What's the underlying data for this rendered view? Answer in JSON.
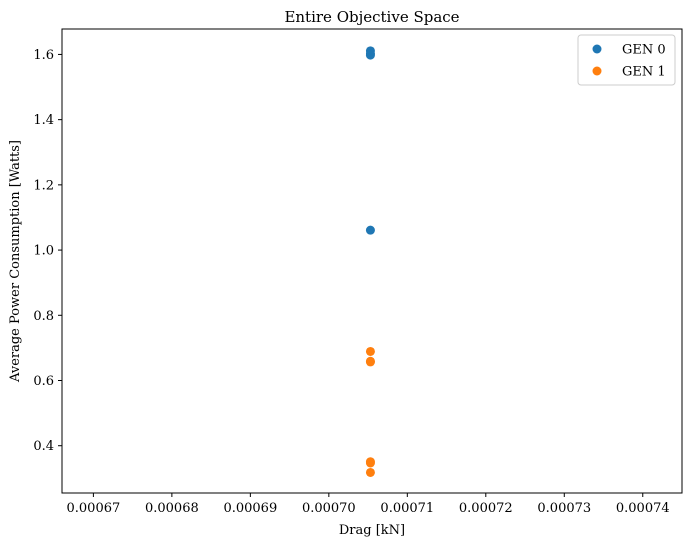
{
  "chart_data": {
    "type": "scatter",
    "title": "Entire Objective Space",
    "xlabel": "Drag [kN]",
    "ylabel": "Average Power Consumption [Watts]",
    "xlim": [
      0.000666,
      0.000745
    ],
    "ylim": [
      0.255,
      1.678
    ],
    "xticks": [
      0.00067,
      0.00068,
      0.00069,
      0.0007,
      0.00071,
      0.00072,
      0.00073,
      0.00074
    ],
    "xtick_labels": [
      "0.00067",
      "0.00068",
      "0.00069",
      "0.00070",
      "0.00071",
      "0.00072",
      "0.00073",
      "0.00074"
    ],
    "yticks": [
      0.4,
      0.6,
      0.8,
      1.0,
      1.2,
      1.4,
      1.6
    ],
    "ytick_labels": [
      "0.4",
      "0.6",
      "0.8",
      "1.0",
      "1.2",
      "1.4",
      "1.6"
    ],
    "grid": false,
    "legend_position": "top-right",
    "series": [
      {
        "name": "GEN 0",
        "color": "#1f77b4",
        "points": [
          {
            "x": 0.0007053,
            "y": 1.611
          },
          {
            "x": 0.0007053,
            "y": 1.603
          },
          {
            "x": 0.0007053,
            "y": 1.598
          },
          {
            "x": 0.0007053,
            "y": 1.061
          }
        ]
      },
      {
        "name": "GEN 1",
        "color": "#ff7f0e",
        "points": [
          {
            "x": 0.0007053,
            "y": 0.689
          },
          {
            "x": 0.0007053,
            "y": 0.659
          },
          {
            "x": 0.0007053,
            "y": 0.657
          },
          {
            "x": 0.0007053,
            "y": 0.351
          },
          {
            "x": 0.0007053,
            "y": 0.347
          },
          {
            "x": 0.0007053,
            "y": 0.318
          }
        ]
      }
    ]
  }
}
